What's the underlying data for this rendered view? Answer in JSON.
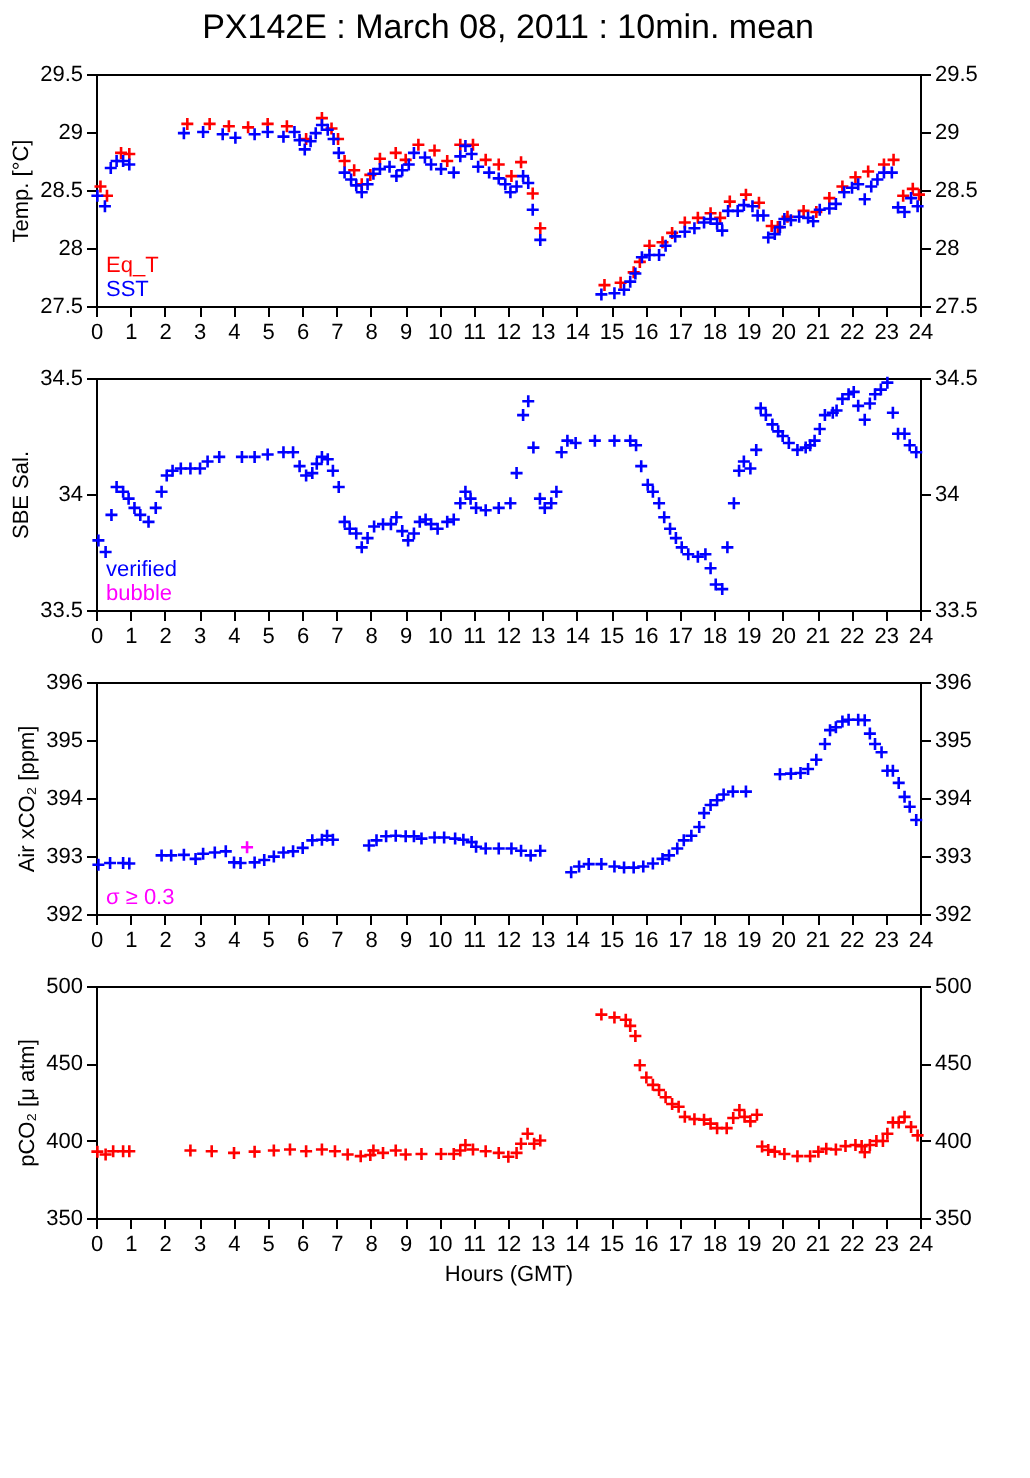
{
  "chart_data": [
    {
      "type": "scatter",
      "title": "PX142E : March 08, 2011 : 10min. mean",
      "ylabel": "Temp. [°C]",
      "xlim": [
        0,
        24
      ],
      "xticks": [
        0,
        1,
        2,
        3,
        4,
        5,
        6,
        7,
        8,
        9,
        10,
        11,
        12,
        13,
        14,
        15,
        16,
        17,
        18,
        19,
        20,
        21,
        22,
        23,
        24
      ],
      "ylim": [
        27.5,
        29.5
      ],
      "yticks": [
        27.5,
        28,
        28.5,
        29,
        29.5
      ],
      "y2lim": [
        27.5,
        29.5
      ],
      "y2ticks": [
        27.5,
        28,
        28.5,
        29,
        29.5
      ],
      "marker": "cross",
      "legend": "bottom left",
      "series": [
        {
          "name": "Eq_T",
          "color": "#ff0000",
          "x": [
            0.13,
            0.32,
            0.73,
            0.97,
            2.66,
            3.31,
            3.87,
            4.43,
            5.0,
            5.56,
            6.12,
            6.58,
            6.86,
            7.05,
            7.24,
            7.52,
            7.74,
            7.99,
            8.27,
            8.73,
            9.02,
            9.39,
            9.86,
            10.23,
            10.61,
            10.98,
            11.35,
            11.73,
            12.1,
            12.38,
            12.72,
            12.94,
            14.81,
            15.28,
            15.66,
            15.84,
            16.12,
            16.5,
            16.78,
            17.15,
            17.53,
            17.9,
            18.18,
            18.46,
            18.93,
            19.31,
            19.68,
            19.86,
            20.14,
            20.61,
            20.98,
            21.36,
            21.74,
            22.12,
            22.49,
            22.95,
            23.23,
            23.51,
            23.79,
            23.97
          ],
          "values": [
            28.53,
            28.45,
            28.82,
            28.81,
            29.07,
            29.07,
            29.05,
            29.04,
            29.07,
            29.05,
            28.94,
            29.12,
            29.03,
            28.94,
            28.75,
            28.67,
            28.55,
            28.63,
            28.77,
            28.82,
            28.76,
            28.89,
            28.84,
            28.75,
            28.89,
            28.89,
            28.76,
            28.72,
            28.62,
            28.74,
            28.47,
            28.17,
            27.68,
            27.7,
            27.79,
            27.88,
            28.02,
            28.05,
            28.13,
            28.22,
            28.26,
            28.3,
            28.26,
            28.4,
            28.46,
            28.39,
            28.19,
            28.18,
            28.27,
            28.32,
            28.31,
            28.43,
            28.53,
            28.61,
            28.66,
            28.72,
            28.76,
            28.45,
            28.51,
            28.46
          ]
        },
        {
          "name": "SST",
          "color": "#0000ff",
          "x": [
            0.04,
            0.26,
            0.43,
            0.6,
            0.79,
            0.97,
            2.56,
            3.12,
            3.69,
            4.06,
            4.62,
            5.0,
            5.46,
            5.78,
            5.93,
            6.08,
            6.25,
            6.4,
            6.58,
            6.75,
            6.92,
            7.07,
            7.24,
            7.43,
            7.58,
            7.74,
            7.91,
            8.08,
            8.27,
            8.55,
            8.75,
            8.92,
            9.11,
            9.26,
            9.58,
            9.76,
            10.05,
            10.42,
            10.61,
            10.76,
            10.94,
            11.13,
            11.45,
            11.73,
            11.92,
            12.07,
            12.25,
            12.44,
            12.59,
            12.72,
            12.94,
            14.72,
            15.1,
            15.38,
            15.56,
            15.71,
            15.9,
            16.12,
            16.4,
            16.59,
            16.87,
            17.15,
            17.43,
            17.71,
            17.9,
            18.09,
            18.24,
            18.41,
            18.69,
            18.87,
            19.12,
            19.27,
            19.44,
            19.58,
            19.77,
            19.92,
            20.05,
            20.24,
            20.48,
            20.74,
            20.89,
            21.08,
            21.36,
            21.55,
            21.79,
            22.02,
            22.2,
            22.39,
            22.58,
            22.76,
            22.95,
            23.18,
            23.36,
            23.55,
            23.74,
            23.93
          ],
          "values": [
            28.45,
            28.36,
            28.69,
            28.75,
            28.75,
            28.72,
            28.99,
            29.0,
            28.98,
            28.95,
            28.98,
            29.0,
            28.96,
            29.0,
            28.93,
            28.85,
            28.92,
            28.99,
            29.06,
            29.02,
            28.94,
            28.82,
            28.65,
            28.59,
            28.54,
            28.48,
            28.55,
            28.64,
            28.68,
            28.7,
            28.62,
            28.67,
            28.72,
            28.82,
            28.78,
            28.72,
            28.68,
            28.65,
            28.79,
            28.88,
            28.81,
            28.7,
            28.65,
            28.6,
            28.55,
            28.48,
            28.53,
            28.62,
            28.56,
            28.33,
            28.07,
            27.6,
            27.61,
            27.64,
            27.71,
            27.78,
            27.92,
            27.94,
            27.94,
            28.02,
            28.1,
            28.14,
            28.17,
            28.22,
            28.25,
            28.21,
            28.15,
            28.32,
            28.32,
            28.37,
            28.36,
            28.28,
            28.28,
            28.09,
            28.12,
            28.18,
            28.25,
            28.24,
            28.27,
            28.26,
            28.23,
            28.33,
            28.34,
            28.38,
            28.48,
            28.52,
            28.55,
            28.42,
            28.53,
            28.59,
            28.65,
            28.65,
            28.35,
            28.31,
            28.43,
            28.36
          ]
        }
      ]
    },
    {
      "type": "scatter",
      "ylabel": "SBE Sal.",
      "xlim": [
        0,
        24
      ],
      "xticks": [
        0,
        1,
        2,
        3,
        4,
        5,
        6,
        7,
        8,
        9,
        10,
        11,
        12,
        13,
        14,
        15,
        16,
        17,
        18,
        19,
        20,
        21,
        22,
        23,
        24
      ],
      "ylim": [
        33.5,
        34.5
      ],
      "yticks": [
        33.5,
        34,
        34.5
      ],
      "y2lim": [
        33.5,
        34.5
      ],
      "y2ticks": [
        33.5,
        34,
        34.5
      ],
      "marker": "cross",
      "legend": "bottom left",
      "series": [
        {
          "name": "verified",
          "color": "#0000ff",
          "x": [
            0.07,
            0.28,
            0.45,
            0.6,
            0.79,
            0.95,
            1.12,
            1.29,
            1.53,
            1.74,
            1.91,
            2.06,
            2.23,
            2.47,
            2.75,
            3.03,
            3.25,
            3.59,
            4.25,
            4.62,
            5.0,
            5.46,
            5.74,
            5.93,
            6.12,
            6.3,
            6.43,
            6.58,
            6.75,
            6.9,
            7.07,
            7.24,
            7.39,
            7.58,
            7.74,
            7.91,
            8.1,
            8.36,
            8.59,
            8.75,
            8.92,
            9.09,
            9.26,
            9.43,
            9.6,
            9.76,
            9.95,
            10.23,
            10.42,
            10.61,
            10.76,
            10.91,
            11.07,
            11.35,
            11.73,
            12.07,
            12.25,
            12.44,
            12.59,
            12.74,
            12.93,
            13.07,
            13.26,
            13.41,
            13.56,
            13.73,
            13.97,
            14.53,
            15.1,
            15.56,
            15.73,
            15.88,
            16.07,
            16.22,
            16.4,
            16.55,
            16.72,
            16.89,
            17.06,
            17.25,
            17.53,
            17.75,
            17.9,
            18.05,
            18.24,
            18.39,
            18.58,
            18.73,
            18.87,
            19.06,
            19.23,
            19.36,
            19.51,
            19.7,
            19.87,
            20.0,
            20.18,
            20.43,
            20.67,
            20.8,
            20.93,
            21.08,
            21.23,
            21.46,
            21.57,
            21.74,
            21.92,
            22.07,
            22.2,
            22.39,
            22.54,
            22.69,
            22.86,
            23.05,
            23.21,
            23.36,
            23.55,
            23.7,
            23.89
          ],
          "values": [
            33.8,
            33.75,
            33.91,
            34.03,
            34.01,
            33.98,
            33.94,
            33.91,
            33.88,
            33.94,
            34.01,
            34.08,
            34.1,
            34.11,
            34.11,
            34.11,
            34.14,
            34.16,
            34.16,
            34.16,
            34.17,
            34.18,
            34.18,
            34.12,
            34.08,
            34.09,
            34.13,
            34.16,
            34.15,
            34.1,
            34.03,
            33.88,
            33.85,
            33.83,
            33.77,
            33.81,
            33.86,
            33.87,
            33.87,
            33.9,
            33.84,
            33.8,
            33.83,
            33.88,
            33.89,
            33.87,
            33.85,
            33.88,
            33.89,
            33.96,
            34.01,
            33.98,
            33.94,
            33.93,
            33.94,
            33.96,
            34.09,
            34.34,
            34.4,
            34.2,
            33.98,
            33.94,
            33.96,
            34.01,
            34.18,
            34.23,
            34.22,
            34.23,
            34.23,
            34.23,
            34.21,
            34.12,
            34.04,
            34.01,
            33.96,
            33.9,
            33.85,
            33.81,
            33.77,
            33.74,
            33.73,
            33.74,
            33.68,
            33.61,
            33.59,
            33.77,
            33.96,
            34.1,
            34.14,
            34.11,
            34.19,
            34.37,
            34.34,
            34.3,
            34.27,
            34.25,
            34.22,
            34.19,
            34.2,
            34.21,
            34.23,
            34.28,
            34.34,
            34.35,
            34.36,
            34.41,
            34.43,
            34.44,
            34.38,
            34.32,
            34.39,
            34.43,
            34.45,
            34.48,
            34.35,
            34.26,
            34.26,
            34.21,
            34.18
          ]
        },
        {
          "name": "bubble",
          "color": "#ff00ff"
        }
      ]
    },
    {
      "type": "scatter",
      "ylabel": "Air xCO₂ [ppm]",
      "xlim": [
        0,
        24
      ],
      "xticks": [
        0,
        1,
        2,
        3,
        4,
        5,
        6,
        7,
        8,
        9,
        10,
        11,
        12,
        13,
        14,
        15,
        16,
        17,
        18,
        19,
        20,
        21,
        22,
        23,
        24
      ],
      "ylim": [
        392,
        396
      ],
      "yticks": [
        392,
        393,
        394,
        395,
        396
      ],
      "y2lim": [
        392,
        396
      ],
      "y2ticks": [
        392,
        393,
        394,
        395,
        396
      ],
      "marker": "cross",
      "legend": "bottom left",
      "series": [
        {
          "color": "#0000ff",
          "x": [
            0.07,
            0.41,
            0.79,
            0.97,
            1.91,
            2.19,
            2.56,
            2.9,
            3.12,
            3.46,
            3.78,
            4.02,
            4.21,
            4.62,
            4.9,
            5.18,
            5.46,
            5.74,
            6.02,
            6.3,
            6.58,
            6.73,
            6.9,
            7.95,
            8.17,
            8.45,
            8.73,
            9.02,
            9.26,
            9.48,
            9.86,
            10.14,
            10.46,
            10.7,
            10.94,
            11.07,
            11.35,
            11.73,
            12.1,
            12.38,
            12.66,
            12.94,
            13.84,
            14.07,
            14.35,
            14.72,
            15.1,
            15.38,
            15.66,
            15.94,
            16.22,
            16.5,
            16.69,
            16.93,
            17.12,
            17.34,
            17.57,
            17.71,
            17.9,
            18.09,
            18.28,
            18.55,
            18.93,
            19.92,
            20.24,
            20.52,
            20.74,
            20.98,
            21.23,
            21.38,
            21.55,
            21.74,
            21.92,
            22.2,
            22.39,
            22.54,
            22.69,
            22.88,
            23.05,
            23.21,
            23.38,
            23.55,
            23.7,
            23.89
          ],
          "values": [
            392.85,
            392.88,
            392.88,
            392.87,
            393.01,
            393.01,
            393.02,
            392.95,
            393.04,
            393.06,
            393.08,
            392.89,
            392.88,
            392.89,
            392.93,
            392.99,
            393.06,
            393.08,
            393.14,
            393.27,
            393.28,
            393.35,
            393.28,
            393.18,
            393.27,
            393.34,
            393.35,
            393.34,
            393.34,
            393.3,
            393.32,
            393.32,
            393.3,
            393.28,
            393.24,
            393.16,
            393.13,
            393.13,
            393.13,
            393.09,
            393.01,
            393.09,
            392.72,
            392.82,
            392.86,
            392.86,
            392.82,
            392.8,
            392.8,
            392.82,
            392.87,
            392.95,
            393.01,
            393.13,
            393.27,
            393.35,
            393.5,
            393.74,
            393.88,
            393.96,
            394.06,
            394.11,
            394.11,
            394.41,
            394.42,
            394.43,
            394.5,
            394.66,
            394.93,
            395.17,
            395.22,
            395.32,
            395.35,
            395.35,
            395.34,
            395.11,
            394.93,
            394.79,
            394.47,
            394.47,
            394.26,
            394.02,
            393.85,
            393.62
          ]
        },
        {
          "name": "σ ≥ 0.3",
          "color": "#ff00ff",
          "x": [
            4.4
          ],
          "values": [
            393.15
          ]
        }
      ]
    },
    {
      "type": "scatter",
      "ylabel": "pCO₂ [μ atm]",
      "xlabel": "Hours (GMT)",
      "xlim": [
        0,
        24
      ],
      "xticks": [
        0,
        1,
        2,
        3,
        4,
        5,
        6,
        7,
        8,
        9,
        10,
        11,
        12,
        13,
        14,
        15,
        16,
        17,
        18,
        19,
        20,
        21,
        22,
        23,
        24
      ],
      "ylim": [
        350,
        500
      ],
      "yticks": [
        350,
        400,
        450,
        500
      ],
      "y2lim": [
        350,
        500
      ],
      "y2ticks": [
        350,
        400,
        450,
        500
      ],
      "marker": "cross",
      "series": [
        {
          "color": "#ff0000",
          "x": [
            0.04,
            0.28,
            0.5,
            0.79,
            0.97,
            2.75,
            3.37,
            4.02,
            4.62,
            5.18,
            5.65,
            6.12,
            6.58,
            6.96,
            7.33,
            7.71,
            7.99,
            8.08,
            8.36,
            8.73,
            9.02,
            9.48,
            10.05,
            10.42,
            10.61,
            10.76,
            10.98,
            11.35,
            11.73,
            12.01,
            12.25,
            12.38,
            12.57,
            12.76,
            12.94,
            14.72,
            15.1,
            15.43,
            15.56,
            15.71,
            15.84,
            16.03,
            16.22,
            16.4,
            16.59,
            16.78,
            16.97,
            17.15,
            17.43,
            17.71,
            17.9,
            18.09,
            18.37,
            18.56,
            18.74,
            18.89,
            19.06,
            19.25,
            19.4,
            19.58,
            19.77,
            20.05,
            20.43,
            20.8,
            21.04,
            21.27,
            21.55,
            21.83,
            22.12,
            22.3,
            22.39,
            22.54,
            22.73,
            22.92,
            23.05,
            23.21,
            23.38,
            23.55,
            23.74,
            23.93
          ],
          "values": [
            392.9,
            391.1,
            393.2,
            393.2,
            393.2,
            393.6,
            393.2,
            392.1,
            392.9,
            393.6,
            394.3,
            393.2,
            394.3,
            393.2,
            391.1,
            390,
            390.7,
            393.6,
            392.1,
            393.6,
            391.1,
            391.4,
            391.4,
            391.4,
            393.6,
            397.2,
            394.3,
            393.2,
            392.1,
            389.6,
            392.1,
            398,
            404.5,
            398,
            400.1,
            481.5,
            479.7,
            478.2,
            474.2,
            467.7,
            448.8,
            440.8,
            436.1,
            432.8,
            428.1,
            423.7,
            421.9,
            415.4,
            413.9,
            413.6,
            411,
            408.1,
            408.1,
            414.7,
            419.8,
            415.4,
            412.5,
            416.8,
            396.2,
            394,
            392.9,
            391.4,
            390,
            390,
            392.9,
            394.7,
            394.3,
            396.5,
            397.2,
            396.5,
            392.5,
            397.2,
            399.8,
            399.8,
            404.5,
            411.8,
            411.8,
            415.4,
            408.9,
            403.4
          ]
        }
      ]
    }
  ]
}
